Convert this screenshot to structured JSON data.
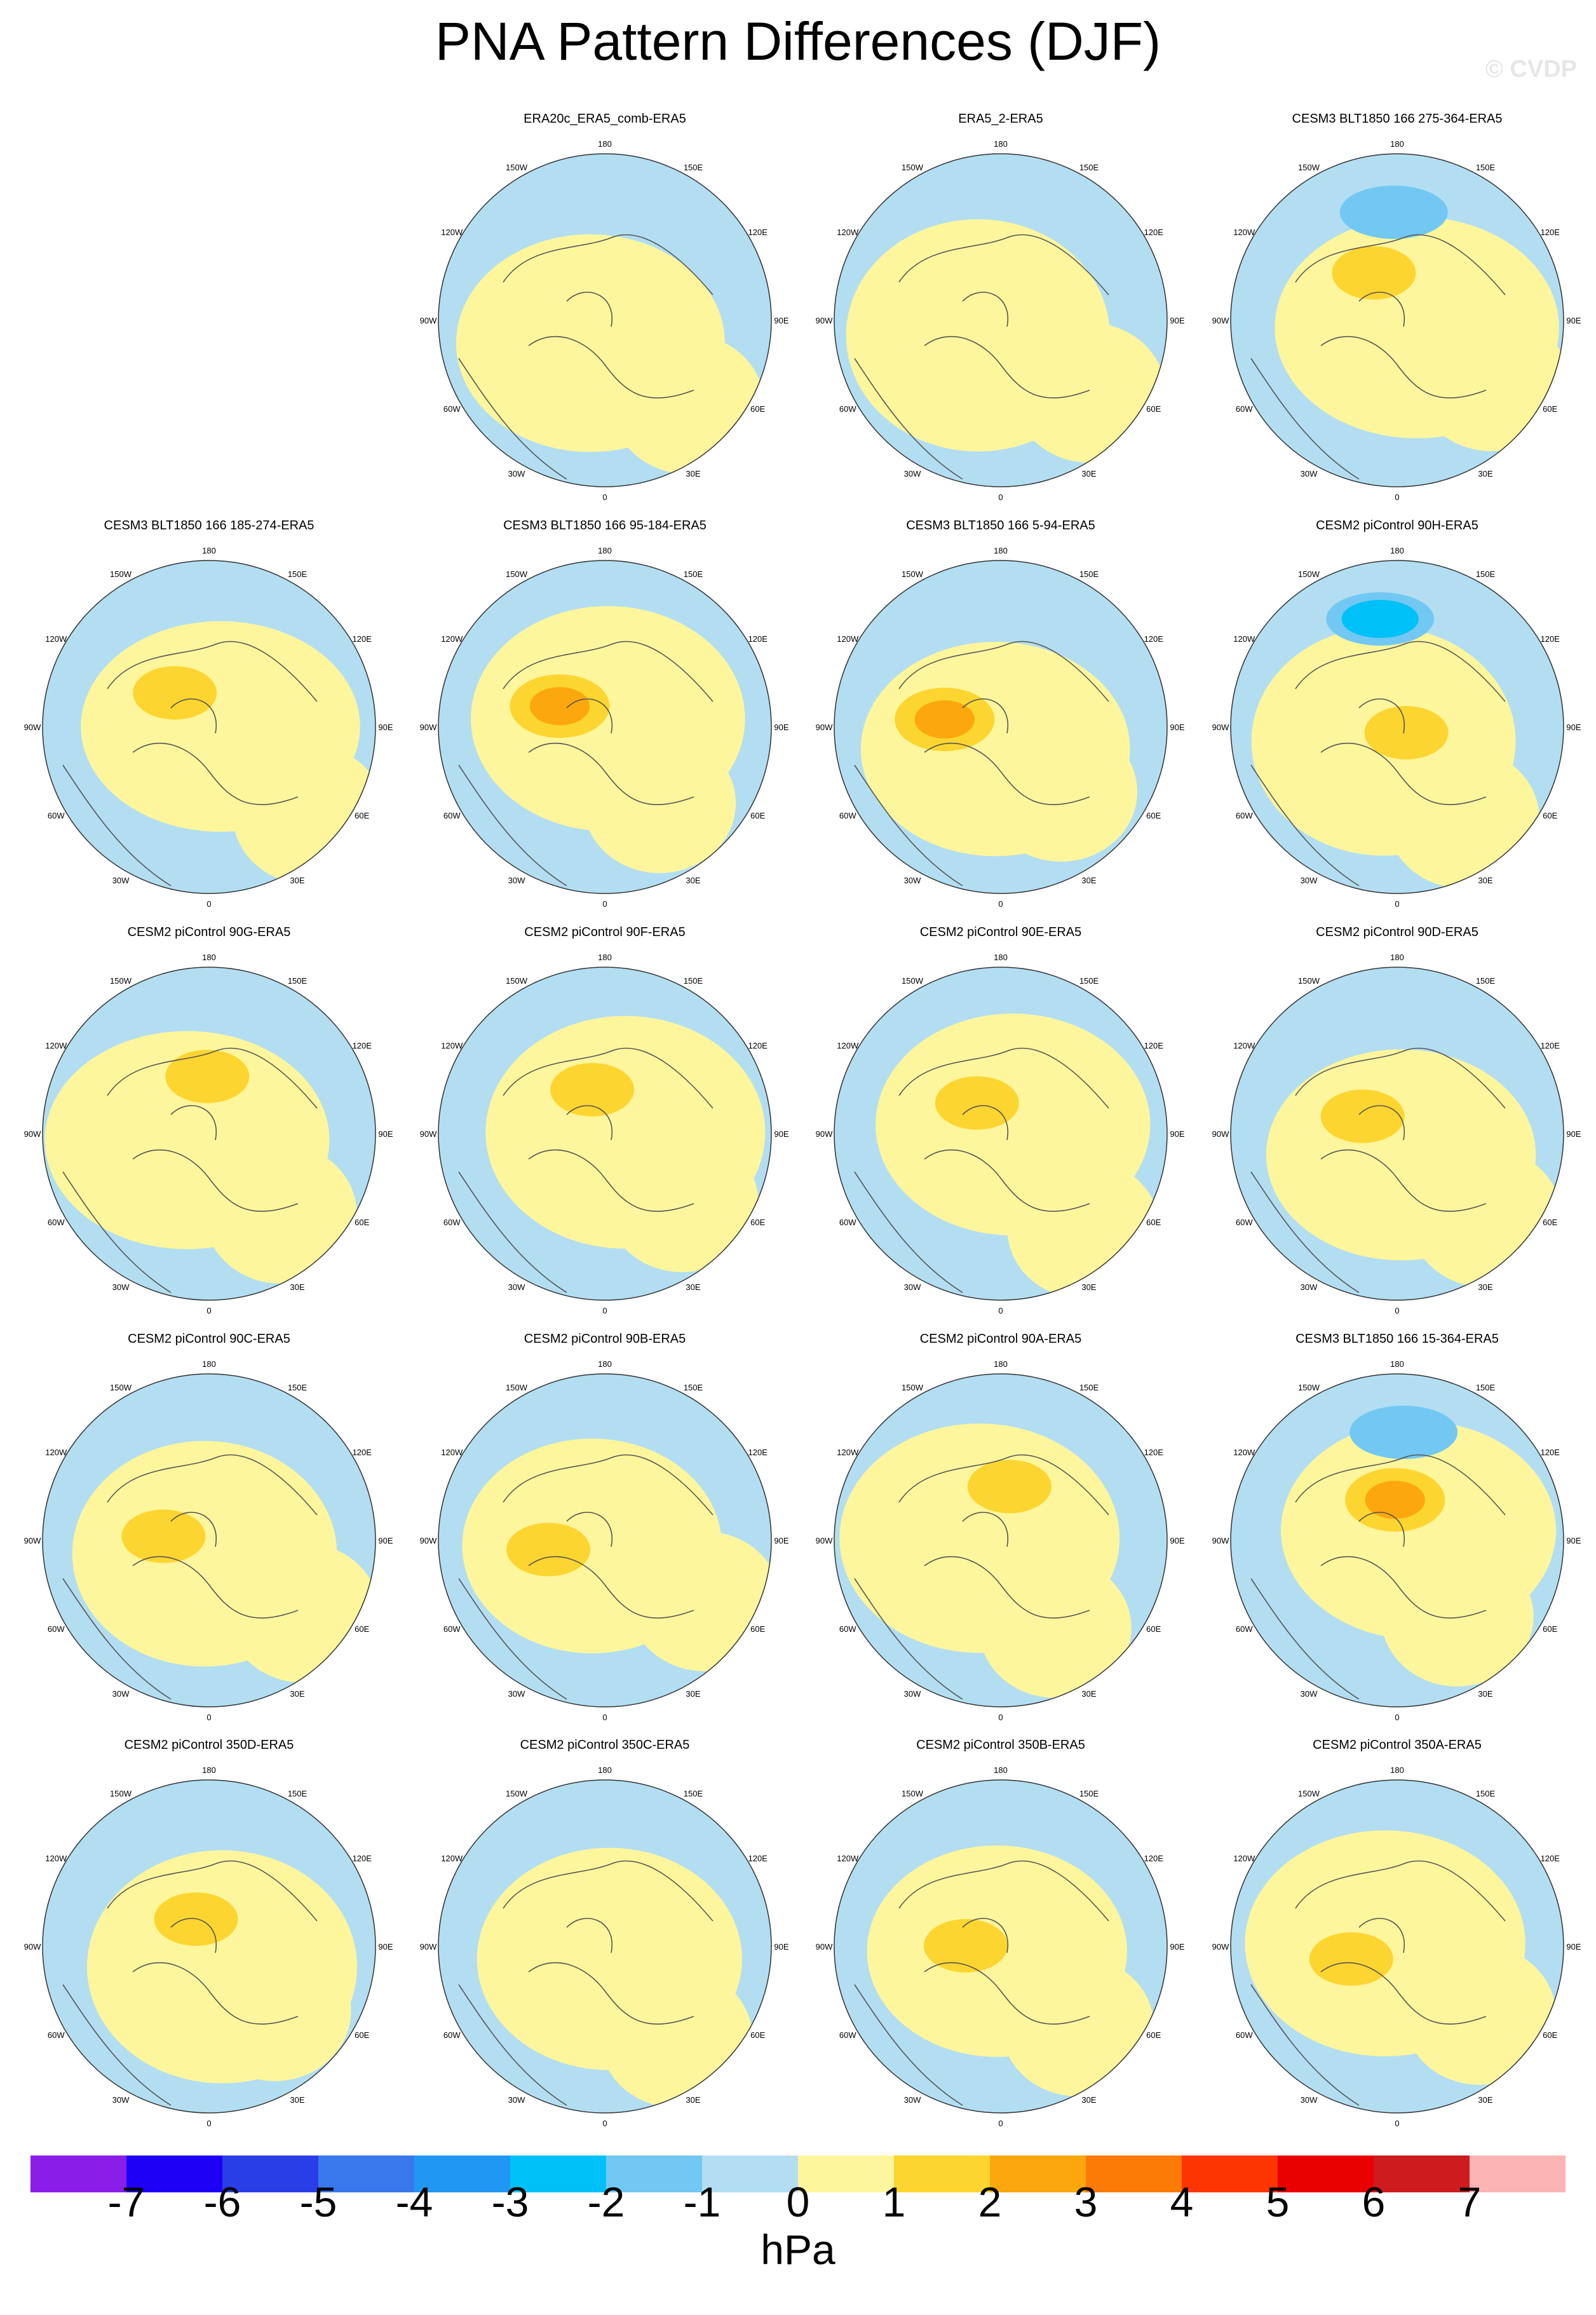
{
  "title": "PNA Pattern Differences (DJF)",
  "watermark": "© CVDP",
  "lon_labels": [
    "180",
    "150E",
    "120E",
    "90E",
    "60E",
    "30E",
    "0",
    "30W",
    "60W",
    "90W",
    "120W",
    "150W"
  ],
  "panels": [
    {
      "title": "ERA20c_ERA5_comb-ERA5",
      "max_level": 1,
      "min_level": -1
    },
    {
      "title": "ERA5_2-ERA5",
      "max_level": 1,
      "min_level": -1
    },
    {
      "title": "CESM3 BLT1850 166 275-364-ERA5",
      "max_level": 2,
      "min_level": -2
    },
    {
      "title": "CESM3 BLT1850 166 185-274-ERA5",
      "max_level": 2,
      "min_level": -1
    },
    {
      "title": "CESM3 BLT1850 166 95-184-ERA5",
      "max_level": 3,
      "min_level": -1
    },
    {
      "title": "CESM3 BLT1850 166 5-94-ERA5",
      "max_level": 3,
      "min_level": -1
    },
    {
      "title": "CESM2 piControl 90H-ERA5",
      "max_level": 2,
      "min_level": -3
    },
    {
      "title": "CESM2 piControl 90G-ERA5",
      "max_level": 2,
      "min_level": -1
    },
    {
      "title": "CESM2 piControl 90F-ERA5",
      "max_level": 2,
      "min_level": -1
    },
    {
      "title": "CESM2 piControl 90E-ERA5",
      "max_level": 2,
      "min_level": -1
    },
    {
      "title": "CESM2 piControl 90D-ERA5",
      "max_level": 2,
      "min_level": -1
    },
    {
      "title": "CESM2 piControl 90C-ERA5",
      "max_level": 2,
      "min_level": -1
    },
    {
      "title": "CESM2 piControl 90B-ERA5",
      "max_level": 2,
      "min_level": -1
    },
    {
      "title": "CESM2 piControl 90A-ERA5",
      "max_level": 2,
      "min_level": -1
    },
    {
      "title": "CESM3 BLT1850 166 15-364-ERA5",
      "max_level": 3,
      "min_level": -2
    },
    {
      "title": "CESM2 piControl 350D-ERA5",
      "max_level": 2,
      "min_level": -1
    },
    {
      "title": "CESM2 piControl 350C-ERA5",
      "max_level": 1,
      "min_level": -1
    },
    {
      "title": "CESM2 piControl 350B-ERA5",
      "max_level": 2,
      "min_level": -1
    },
    {
      "title": "CESM2 piControl 350A-ERA5",
      "max_level": 2,
      "min_level": -1
    }
  ],
  "colorbar": {
    "unit": "hPa",
    "tick_labels": [
      "-7",
      "-6",
      "-5",
      "-4",
      "-3",
      "-2",
      "-1",
      "0",
      "1",
      "2",
      "3",
      "4",
      "5",
      "6",
      "7"
    ],
    "colors": [
      "#8a1ee8",
      "#1e00f5",
      "#2a3ee8",
      "#3878ec",
      "#2197f4",
      "#00c1f7",
      "#72c8f2",
      "#b3def2",
      "#fef69c",
      "#fcd530",
      "#fca70e",
      "#fc7b07",
      "#fc3503",
      "#e80000",
      "#cd1b1e",
      "#fcb4b4"
    ]
  },
  "chart_data": {
    "type": "polar contour map grid",
    "projection": "Northern Hemisphere polar stereographic",
    "variable": "PNA pattern difference",
    "season": "DJF",
    "units": "hPa",
    "levels": [
      -7,
      -6,
      -5,
      -4,
      -3,
      -2,
      -1,
      0,
      1,
      2,
      3,
      4,
      5,
      6,
      7
    ],
    "n_panels": 19
  }
}
